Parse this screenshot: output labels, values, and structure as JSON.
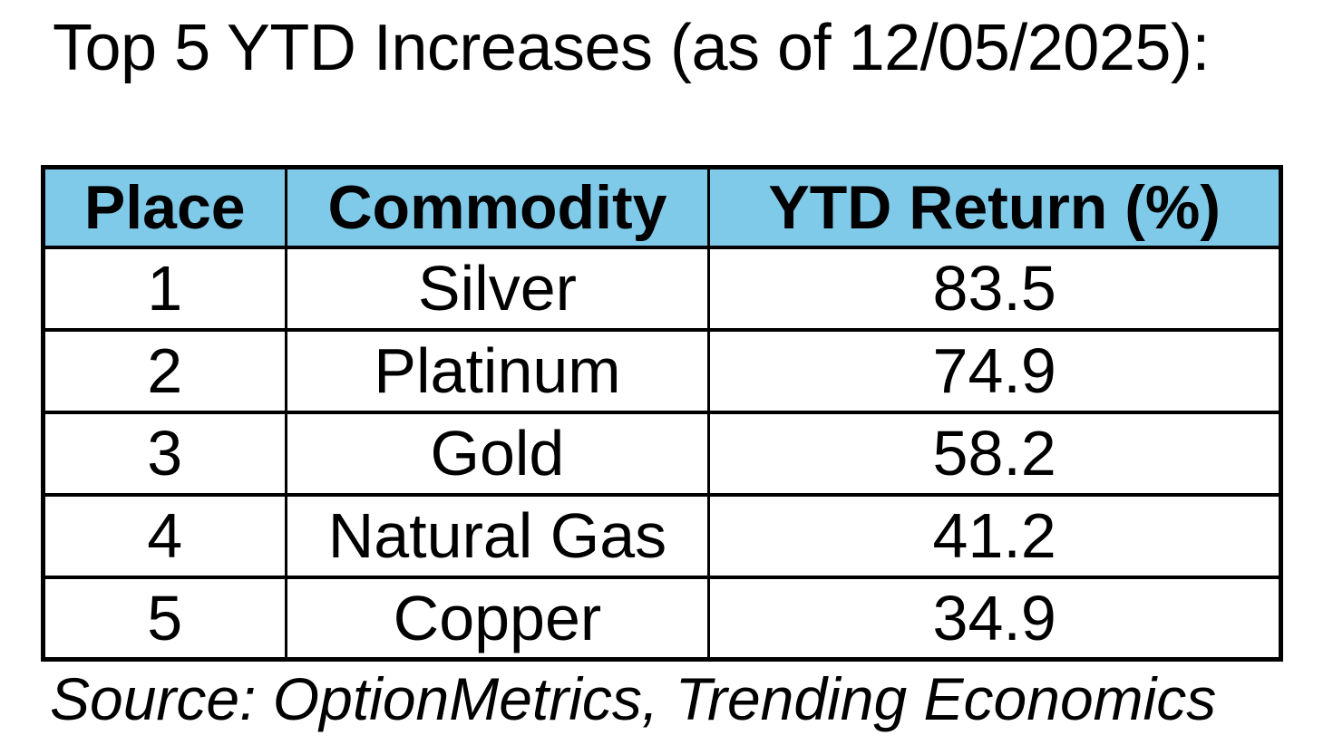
{
  "title": "Top 5 YTD Increases (as of 12/05/2025):",
  "source": "Source: OptionMetrics, Trending Economics",
  "colors": {
    "header_bg": "#7FC9E9",
    "border": "#000000",
    "text": "#000000",
    "background": "#FFFFFF"
  },
  "chart_data": {
    "type": "table",
    "title": "Top 5 YTD Increases (as of 12/05/2025):",
    "columns": [
      "Place",
      "Commodity",
      "YTD Return (%)"
    ],
    "rows": [
      [
        "1",
        "Silver",
        "83.5"
      ],
      [
        "2",
        "Platinum",
        "74.9"
      ],
      [
        "3",
        "Gold",
        "58.2"
      ],
      [
        "4",
        "Natural Gas",
        "41.2"
      ],
      [
        "5",
        "Copper",
        "34.9"
      ]
    ],
    "source": "Source: OptionMetrics, Trending Economics"
  }
}
